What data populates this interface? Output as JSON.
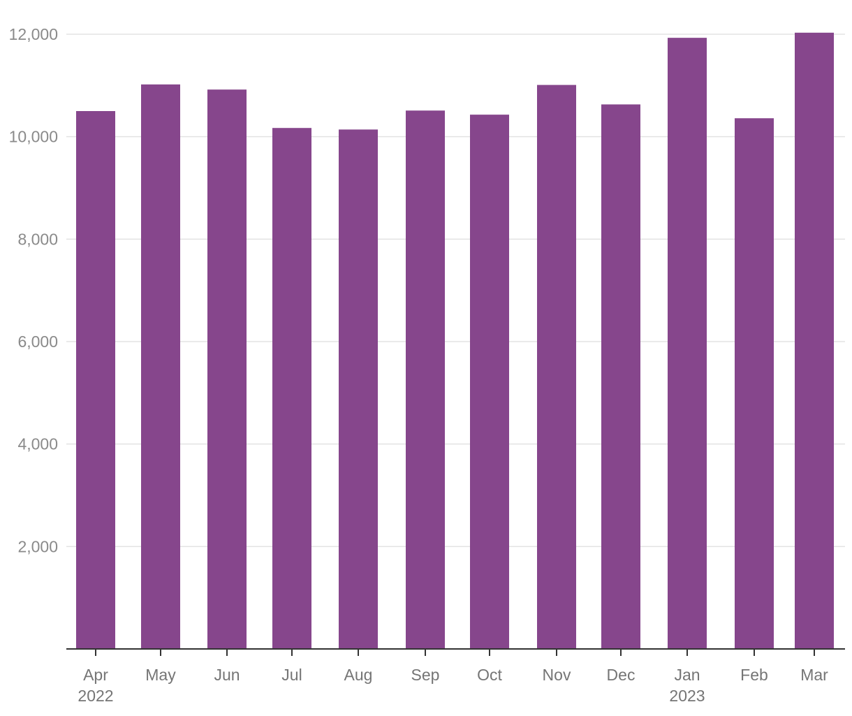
{
  "colors": {
    "bar": "#86468c",
    "grid": "#e3e3e3",
    "axis": "#333333",
    "tick_text": "#8a8a8a"
  },
  "chart_data": {
    "type": "bar",
    "title": "",
    "xlabel": "",
    "ylabel": "",
    "categories": [
      "Apr",
      "May",
      "Jun",
      "Jul",
      "Aug",
      "Sep",
      "Oct",
      "Nov",
      "Dec",
      "Jan",
      "Feb",
      "Mar"
    ],
    "year_labels": [
      "2022",
      "",
      "",
      "",
      "",
      "",
      "",
      "",
      "",
      "2023",
      "",
      ""
    ],
    "values": [
      10500,
      11020,
      10920,
      10170,
      10140,
      10510,
      10430,
      11010,
      10630,
      11930,
      10360,
      12030
    ],
    "ylim": [
      0,
      12000
    ],
    "y_ticks": [
      2000,
      4000,
      6000,
      8000,
      10000,
      12000
    ],
    "y_tick_labels": [
      "2,000",
      "4,000",
      "6,000",
      "8,000",
      "10,000",
      "12,000"
    ],
    "grid": true,
    "legend": "none"
  }
}
